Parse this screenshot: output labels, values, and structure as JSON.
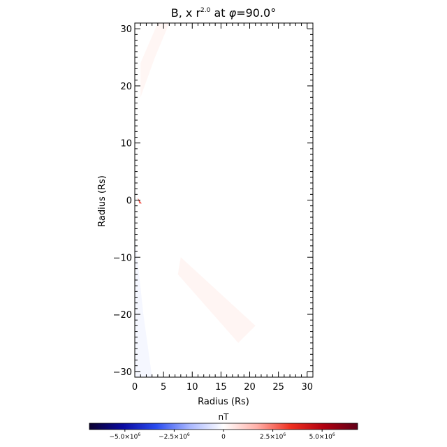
{
  "chart_data": {
    "type": "heatmap",
    "title": "B, x r^2.0 at φ=90.0°",
    "title_parts": {
      "prefix": "B, x r",
      "exponent": "2.0",
      "middle": " at ",
      "phi": "φ",
      "suffix": "=90.0°"
    },
    "xlabel": "Radius (Rs)",
    "ylabel": "Radius (Rs)",
    "xlim": [
      0,
      31
    ],
    "ylim": [
      -31,
      31
    ],
    "x_ticks": [
      0,
      5,
      10,
      15,
      20,
      25,
      30
    ],
    "y_ticks": [
      -30,
      -20,
      -10,
      0,
      10,
      20,
      30
    ],
    "x_tick_labels": [
      "0",
      "5",
      "10",
      "15",
      "20",
      "25",
      "30"
    ],
    "y_tick_labels": [
      "−30",
      "−20",
      "−10",
      "0",
      "10",
      "20",
      "30"
    ],
    "field_regions": [
      {
        "sign": "positive",
        "points": [
          [
            1.0,
            18.0
          ],
          [
            3.5,
            25.0
          ],
          [
            6.0,
            31.0
          ],
          [
            4.0,
            31.0
          ],
          [
            1.0,
            24.0
          ]
        ],
        "color": "#fff6f4"
      },
      {
        "sign": "positive",
        "points": [
          [
            8.0,
            -10.0
          ],
          [
            21.0,
            -22.0
          ],
          [
            18.0,
            -25.0
          ],
          [
            7.5,
            -13.0
          ]
        ],
        "color": "#fff5f3"
      },
      {
        "sign": "negative",
        "points": [
          [
            0.0,
            -6.0
          ],
          [
            1.5,
            -20.0
          ],
          [
            3.0,
            -31.0
          ],
          [
            0.0,
            -31.0
          ]
        ],
        "color": "#f5f7ff"
      },
      {
        "sign": "positive",
        "points": [
          [
            0.5,
            0.4
          ],
          [
            1.2,
            -0.6
          ],
          [
            0.8,
            -0.6
          ]
        ],
        "color": "#f05a50"
      }
    ],
    "colorbar": {
      "label": "nT",
      "range": [
        -6800000.0,
        6800000.0
      ],
      "tick_values": [
        -5000000.0,
        -2500000.0,
        0,
        2500000.0,
        5000000.0
      ],
      "tick_labels": [
        {
          "mant": "−5.0×10",
          "exp": "6"
        },
        {
          "mant": "−2.5×10",
          "exp": "6"
        },
        {
          "mant": "0",
          "exp": ""
        },
        {
          "mant": "2.5×10",
          "exp": "6"
        },
        {
          "mant": "5.0×10",
          "exp": "6"
        }
      ],
      "colors": [
        "#0b0030",
        "#0a0aa0",
        "#2a4cf0",
        "#aab8ff",
        "#ffffff",
        "#ffb0a8",
        "#f03020",
        "#b00010",
        "#600018"
      ]
    }
  }
}
